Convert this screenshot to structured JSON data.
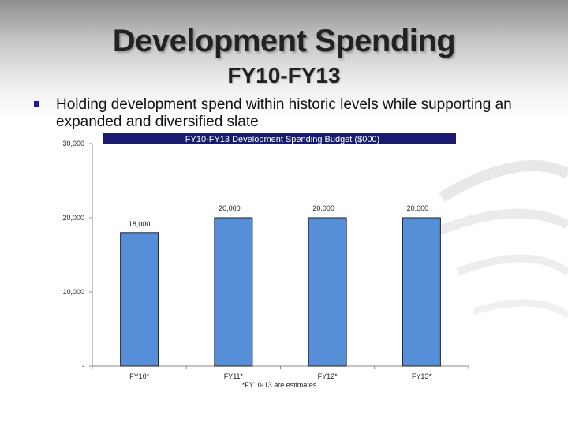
{
  "slide": {
    "title": "Development Spending",
    "subtitle": "FY10-FY13",
    "bullet": "Holding development spend within historic levels while supporting an expanded and diversified slate"
  },
  "chart_data": {
    "type": "bar",
    "title": "FY10-FY13 Development Spending Budget ($000)",
    "categories": [
      "FY10*",
      "FY11*",
      "FY12*",
      "FY13*"
    ],
    "values": [
      18000,
      20000,
      20000,
      20000
    ],
    "value_labels": [
      "18,000",
      "20,000",
      "20,000",
      "20,000"
    ],
    "ylim": [
      0,
      30000
    ],
    "yticks": [
      0,
      10000,
      20000,
      30000
    ],
    "ytick_labels": [
      "-",
      "10,000",
      "20,000",
      "30,000"
    ],
    "xlabel": "",
    "ylabel": "",
    "footnote": "*FY10-13 are estimates",
    "grid": false,
    "legend": "none",
    "colors": {
      "bar": "#568fd8",
      "bar_stroke": "#1f1f1f",
      "title_band": "#1a1a6e",
      "axis": "#888888"
    }
  }
}
